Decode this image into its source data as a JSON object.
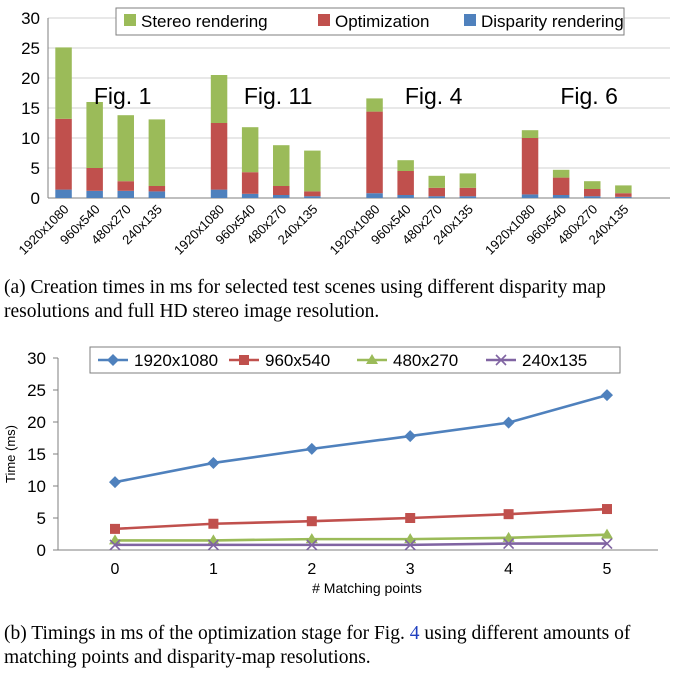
{
  "chart_data": [
    {
      "type": "bar",
      "stacked": true,
      "title": "",
      "groups": [
        "Fig. 1",
        "Fig. 11",
        "Fig. 4",
        "Fig. 6"
      ],
      "categories": [
        "1920x1080",
        "960x540",
        "480x270",
        "240x135"
      ],
      "ylim": [
        0,
        30
      ],
      "yticks": [
        0,
        5,
        10,
        15,
        20,
        25,
        30
      ],
      "grid": true,
      "legend_position": "top",
      "legend_order": [
        "Stereo rendering",
        "Optimization",
        "Disparity rendering"
      ],
      "colors": {
        "Disparity rendering": "#4f81bd",
        "Optimization": "#c0504d",
        "Stereo rendering": "#9bbb59"
      },
      "series": [
        {
          "name": "Disparity rendering",
          "values": [
            [
              1.4,
              1.2,
              1.2,
              1.1
            ],
            [
              1.4,
              0.7,
              0.5,
              0.3
            ],
            [
              0.8,
              0.5,
              0.3,
              0.3
            ],
            [
              0.6,
              0.5,
              0.3,
              0.2
            ]
          ]
        },
        {
          "name": "Optimization",
          "values": [
            [
              11.8,
              3.8,
              1.6,
              0.9
            ],
            [
              11.1,
              3.6,
              1.5,
              0.8
            ],
            [
              13.6,
              4.0,
              1.4,
              1.4
            ],
            [
              9.4,
              2.9,
              1.2,
              0.6
            ]
          ]
        },
        {
          "name": "Stereo rendering",
          "values": [
            [
              11.9,
              11.0,
              11.0,
              11.1
            ],
            [
              8.0,
              7.5,
              6.8,
              6.8
            ],
            [
              2.2,
              1.8,
              2.0,
              2.4
            ],
            [
              1.3,
              1.3,
              1.3,
              1.3
            ]
          ]
        }
      ]
    },
    {
      "type": "line",
      "title": "",
      "xlabel": "# Matching points",
      "ylabel": "Time (ms)",
      "x": [
        0,
        1,
        2,
        3,
        4,
        5
      ],
      "xlim": [
        0,
        5
      ],
      "ylim": [
        0,
        30
      ],
      "yticks": [
        0,
        5,
        10,
        15,
        20,
        25,
        30
      ],
      "grid": false,
      "legend_position": "top",
      "series": [
        {
          "name": "1920x1080",
          "color": "#4f81bd",
          "marker": "diamond",
          "values": [
            10.6,
            13.6,
            15.8,
            17.8,
            19.9,
            24.2
          ]
        },
        {
          "name": "960x540",
          "color": "#c0504d",
          "marker": "square",
          "values": [
            3.3,
            4.1,
            4.5,
            5.0,
            5.6,
            6.4
          ]
        },
        {
          "name": "480x270",
          "color": "#9bbb59",
          "marker": "triangle",
          "values": [
            1.5,
            1.5,
            1.7,
            1.7,
            1.9,
            2.4
          ]
        },
        {
          "name": "240x135",
          "color": "#8064a2",
          "marker": "x",
          "values": [
            0.8,
            0.8,
            0.8,
            0.8,
            1.0,
            1.0
          ]
        }
      ]
    }
  ],
  "captions": {
    "a": {
      "label": "(a)",
      "text": "Creation times in ms for selected test scenes using different disparity map resolutions and full HD stereo image resolution."
    },
    "b": {
      "label": "(b)",
      "text_before": "Timings in ms of the optimization stage for Fig.",
      "ref": "4",
      "text_after": "using different amounts of matching points and disparity-map resolutions."
    }
  }
}
